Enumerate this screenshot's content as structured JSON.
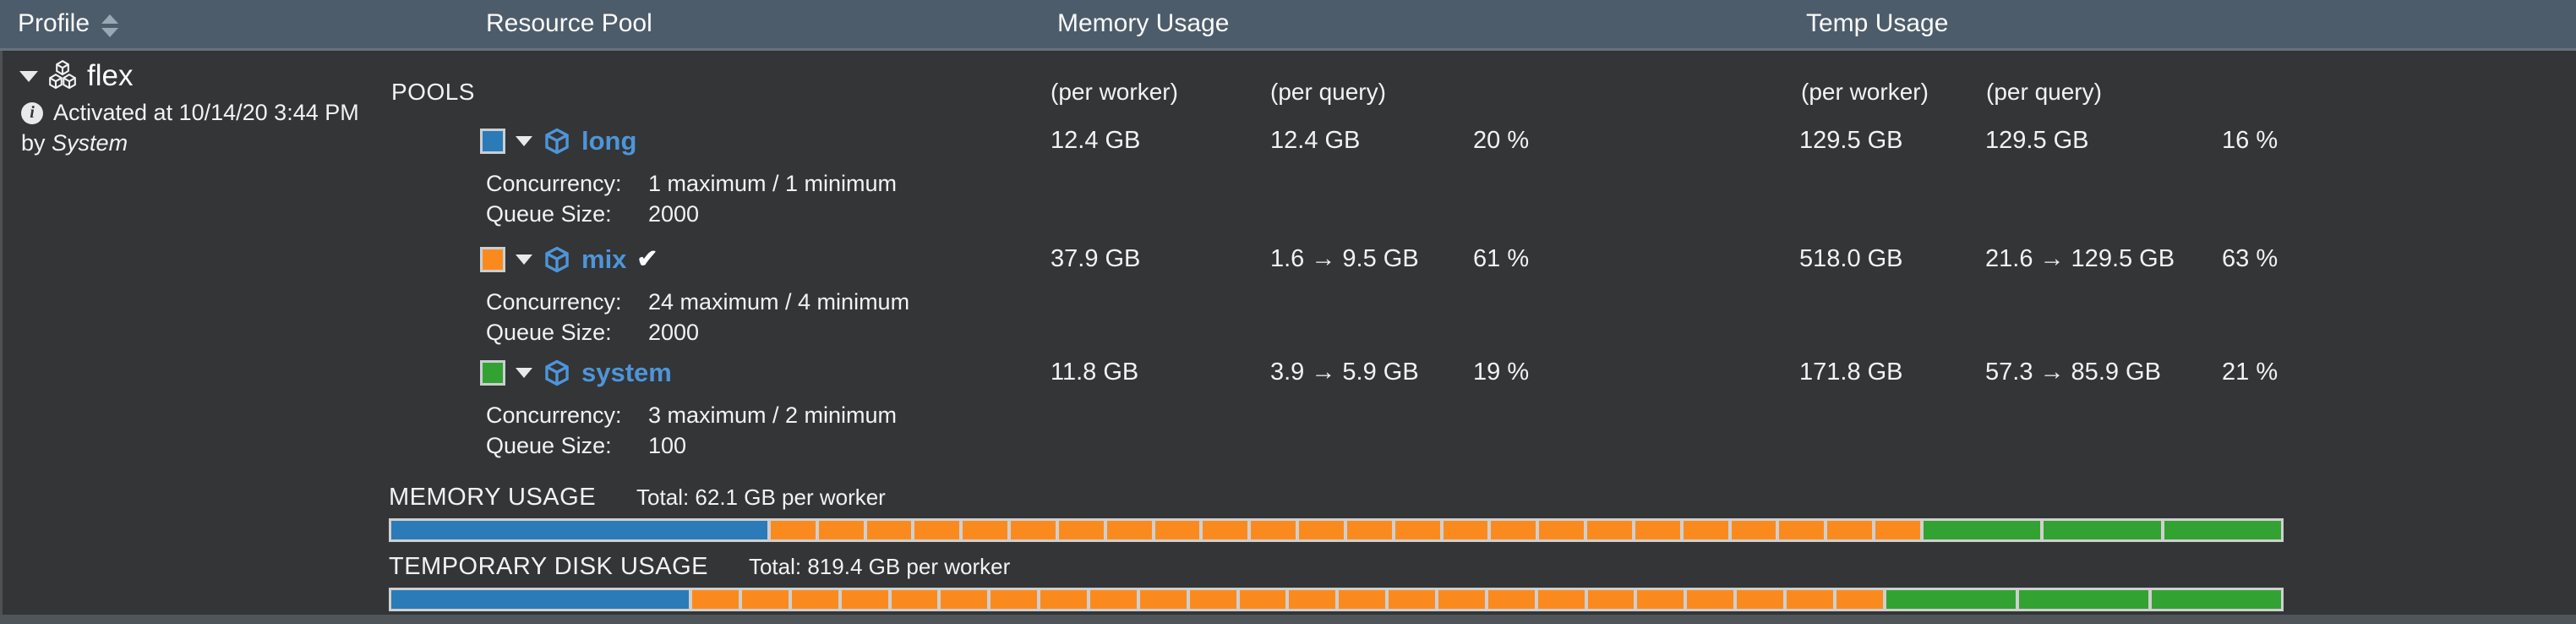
{
  "header": {
    "profile": "Profile",
    "resource_pool": "Resource Pool",
    "memory_usage": "Memory Usage",
    "temp_usage": "Temp Usage"
  },
  "profile": {
    "name": "flex",
    "activated_text": "Activated at 10/14/20 3:44 PM",
    "by_prefix": "by",
    "activated_by": "System"
  },
  "pools": {
    "section_label": "POOLS",
    "memory_per_worker_header": "(per worker)",
    "memory_per_query_header": "(per query)",
    "temp_per_worker_header": "(per worker)",
    "temp_per_query_header": "(per query)",
    "concurrency_label": "Concurrency:",
    "queue_label": "Queue Size:",
    "rows": [
      {
        "name": "long",
        "check": "",
        "swatch_color": "#2b7bb9",
        "memory_per_worker": "12.4 GB",
        "memory_per_query": "12.4 GB",
        "memory_pct": "20 %",
        "temp_per_worker": "129.5 GB",
        "temp_per_query": "129.5 GB",
        "temp_pct": "16 %",
        "concurrency": "1 maximum / 1 minimum",
        "queue_size": "2000"
      },
      {
        "name": "mix",
        "check": "✔",
        "swatch_color": "#fb8a1e",
        "memory_per_worker": "37.9 GB",
        "memory_per_query": "1.6 → 9.5 GB",
        "memory_pct": "61 %",
        "temp_per_worker": "518.0 GB",
        "temp_per_query": "21.6 → 129.5 GB",
        "temp_pct": "63 %",
        "concurrency": "24 maximum / 4 minimum",
        "queue_size": "2000"
      },
      {
        "name": "system",
        "check": "",
        "swatch_color": "#32a332",
        "memory_per_worker": "11.8 GB",
        "memory_per_query": "3.9 → 5.9 GB",
        "memory_pct": "19 %",
        "temp_per_worker": "171.8 GB",
        "temp_per_query": "57.3 → 85.9 GB",
        "temp_pct": "21 %",
        "concurrency": "3 maximum / 2 minimum",
        "queue_size": "100"
      }
    ]
  },
  "bars": {
    "memory": {
      "label": "MEMORY USAGE",
      "total": "Total: 62.1 GB per worker",
      "groups": [
        {
          "pool": "long",
          "color": "#2b7bb9",
          "pct": 19.97,
          "parts": 1,
          "per_worker_gb": 12.4
        },
        {
          "pool": "mix",
          "color": "#fb8a1e",
          "pct": 61.03,
          "parts": 24,
          "per_worker_gb": 37.9
        },
        {
          "pool": "system",
          "color": "#32a332",
          "pct": 19.0,
          "parts": 3,
          "per_worker_gb": 11.8
        }
      ]
    },
    "temp": {
      "label": "TEMPORARY DISK USAGE",
      "total": "Total: 819.4 GB per worker",
      "groups": [
        {
          "pool": "long",
          "color": "#2b7bb9",
          "pct": 15.8,
          "parts": 1,
          "per_worker_gb": 129.5
        },
        {
          "pool": "mix",
          "color": "#fb8a1e",
          "pct": 63.22,
          "parts": 24,
          "per_worker_gb": 518.0
        },
        {
          "pool": "system",
          "color": "#32a332",
          "pct": 20.97,
          "parts": 3,
          "per_worker_gb": 171.8
        }
      ]
    }
  },
  "colors": {
    "header_bg": "#4d5c6b",
    "content_bg": "#333536",
    "pool_link": "#4e95d9",
    "blue": "#2b7bb9",
    "orange": "#fb8a1e",
    "green": "#32a332",
    "bar_track": "#cfcfcf"
  }
}
